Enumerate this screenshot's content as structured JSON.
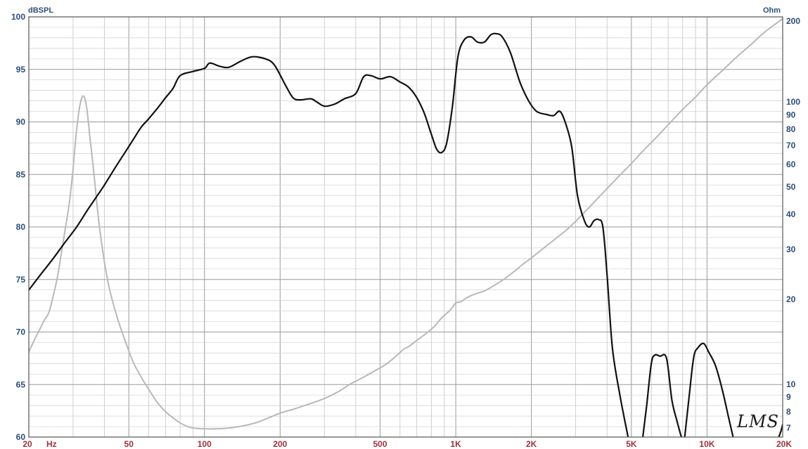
{
  "chart_data": {
    "type": "line",
    "title": "",
    "left_axis": {
      "unit": "dBSPL",
      "ylim": [
        60,
        100
      ],
      "ticks": [
        60,
        65,
        70,
        75,
        80,
        85,
        90,
        95,
        100
      ]
    },
    "right_axis": {
      "unit": "Ohm",
      "scale": "log",
      "ylim": [
        6.5,
        200
      ],
      "ticks": [
        {
          "value": 7,
          "label": "7"
        },
        {
          "value": 8,
          "label": "8"
        },
        {
          "value": 9,
          "label": "9"
        },
        {
          "value": 10,
          "label": "10"
        },
        {
          "value": 20,
          "label": "20"
        },
        {
          "value": 30,
          "label": "30"
        },
        {
          "value": 40,
          "label": "40"
        },
        {
          "value": 50,
          "label": "50"
        },
        {
          "value": 60,
          "label": "60"
        },
        {
          "value": 70,
          "label": "70"
        },
        {
          "value": 80,
          "label": "80"
        },
        {
          "value": 90,
          "label": "90"
        },
        {
          "value": 100,
          "label": "100"
        },
        {
          "value": 200,
          "label": "200"
        }
      ]
    },
    "x_axis": {
      "unit": "Hz",
      "scale": "log",
      "xlim": [
        20,
        20000
      ],
      "ticks": [
        {
          "value": 20,
          "label": "20"
        },
        {
          "value": 50,
          "label": "50"
        },
        {
          "value": 100,
          "label": "100"
        },
        {
          "value": 200,
          "label": "200"
        },
        {
          "value": 500,
          "label": "500"
        },
        {
          "value": 1000,
          "label": "1K"
        },
        {
          "value": 2000,
          "label": "2K"
        },
        {
          "value": 5000,
          "label": "5K"
        },
        {
          "value": 10000,
          "label": "10K"
        },
        {
          "value": 20000,
          "label": "20K"
        }
      ]
    },
    "grid": true,
    "watermark": "LMS",
    "series": [
      {
        "axis": "left",
        "color": "#111111",
        "points": [
          [
            20,
            74.0
          ],
          [
            22,
            75.3
          ],
          [
            25,
            77.0
          ],
          [
            28,
            78.6
          ],
          [
            31,
            80.0
          ],
          [
            34,
            81.5
          ],
          [
            37,
            82.8
          ],
          [
            40,
            84.0
          ],
          [
            44,
            85.6
          ],
          [
            48,
            87.0
          ],
          [
            52,
            88.3
          ],
          [
            56,
            89.5
          ],
          [
            60,
            90.3
          ],
          [
            65,
            91.3
          ],
          [
            70,
            92.3
          ],
          [
            75,
            93.2
          ],
          [
            80,
            94.4
          ],
          [
            90,
            94.8
          ],
          [
            100,
            95.1
          ],
          [
            105,
            95.6
          ],
          [
            115,
            95.3
          ],
          [
            125,
            95.2
          ],
          [
            140,
            95.8
          ],
          [
            155,
            96.2
          ],
          [
            175,
            96.0
          ],
          [
            190,
            95.4
          ],
          [
            210,
            93.5
          ],
          [
            225,
            92.3
          ],
          [
            240,
            92.1
          ],
          [
            265,
            92.2
          ],
          [
            280,
            91.9
          ],
          [
            300,
            91.5
          ],
          [
            330,
            91.7
          ],
          [
            360,
            92.2
          ],
          [
            400,
            92.7
          ],
          [
            430,
            94.3
          ],
          [
            460,
            94.4
          ],
          [
            500,
            94.1
          ],
          [
            550,
            94.3
          ],
          [
            600,
            93.8
          ],
          [
            650,
            93.3
          ],
          [
            700,
            92.3
          ],
          [
            750,
            90.8
          ],
          [
            800,
            88.8
          ],
          [
            840,
            87.4
          ],
          [
            880,
            87.1
          ],
          [
            920,
            88.0
          ],
          [
            970,
            91.5
          ],
          [
            1020,
            96.2
          ],
          [
            1080,
            97.8
          ],
          [
            1150,
            98.1
          ],
          [
            1220,
            97.6
          ],
          [
            1300,
            97.6
          ],
          [
            1380,
            98.3
          ],
          [
            1450,
            98.4
          ],
          [
            1530,
            98.1
          ],
          [
            1650,
            96.6
          ],
          [
            1800,
            93.8
          ],
          [
            1950,
            92.0
          ],
          [
            2100,
            91.0
          ],
          [
            2300,
            90.7
          ],
          [
            2450,
            90.6
          ],
          [
            2600,
            91.0
          ],
          [
            2750,
            89.7
          ],
          [
            2900,
            87.5
          ],
          [
            3050,
            83.0
          ],
          [
            3250,
            80.6
          ],
          [
            3400,
            80.0
          ],
          [
            3550,
            80.6
          ],
          [
            3700,
            80.7
          ],
          [
            3850,
            80.0
          ],
          [
            4000,
            75.5
          ],
          [
            4200,
            68.5
          ],
          [
            4500,
            64.0
          ],
          [
            4850,
            60.0
          ]
        ]
      },
      {
        "axis": "left",
        "color": "#111111",
        "points": [
          [
            5550,
            60.0
          ],
          [
            5750,
            63.0
          ],
          [
            6000,
            67.0
          ],
          [
            6200,
            67.8
          ],
          [
            6500,
            67.7
          ],
          [
            6900,
            67.5
          ],
          [
            7250,
            63.5
          ],
          [
            7600,
            61.5
          ],
          [
            7900,
            60.0
          ]
        ]
      },
      {
        "axis": "left",
        "color": "#111111",
        "points": [
          [
            8150,
            60.0
          ],
          [
            8500,
            64.0
          ],
          [
            8850,
            67.6
          ],
          [
            9200,
            68.5
          ],
          [
            9700,
            68.9
          ],
          [
            10200,
            68.0
          ],
          [
            10800,
            66.8
          ],
          [
            11500,
            64.5
          ],
          [
            12200,
            61.8
          ],
          [
            12700,
            60.0
          ]
        ]
      },
      {
        "axis": "left",
        "color": "#111111",
        "points": [
          [
            19300,
            60.0
          ],
          [
            19700,
            60.6
          ],
          [
            20000,
            61.2
          ]
        ]
      },
      {
        "axis": "right",
        "color": "#b8b8b8",
        "points": [
          [
            20,
            13.0
          ],
          [
            21,
            14.3
          ],
          [
            22,
            15.5
          ],
          [
            23,
            16.8
          ],
          [
            24,
            17.9
          ],
          [
            25,
            20.5
          ],
          [
            26,
            24.0
          ],
          [
            27,
            29.5
          ],
          [
            28,
            36.0
          ],
          [
            29,
            44.0
          ],
          [
            30,
            58.0
          ],
          [
            31,
            80.0
          ],
          [
            32,
            98.0
          ],
          [
            33,
            105.0
          ],
          [
            34,
            95.0
          ],
          [
            35,
            75.0
          ],
          [
            36,
            60.0
          ],
          [
            37,
            47.0
          ],
          [
            38,
            37.5
          ],
          [
            39,
            31.5
          ],
          [
            40,
            27.0
          ],
          [
            42,
            21.5
          ],
          [
            45,
            17.2
          ],
          [
            48,
            14.5
          ],
          [
            52,
            12.0
          ],
          [
            56,
            10.6
          ],
          [
            60,
            9.6
          ],
          [
            65,
            8.6
          ],
          [
            70,
            8.0
          ],
          [
            75,
            7.6
          ],
          [
            80,
            7.3
          ],
          [
            85,
            7.1
          ],
          [
            90,
            7.0
          ],
          [
            100,
            6.95
          ],
          [
            110,
            6.95
          ],
          [
            125,
            7.0
          ],
          [
            140,
            7.1
          ],
          [
            160,
            7.3
          ],
          [
            180,
            7.6
          ],
          [
            200,
            7.9
          ],
          [
            230,
            8.2
          ],
          [
            260,
            8.5
          ],
          [
            300,
            8.9
          ],
          [
            340,
            9.4
          ],
          [
            380,
            10.0
          ],
          [
            430,
            10.6
          ],
          [
            480,
            11.2
          ],
          [
            530,
            11.8
          ],
          [
            580,
            12.6
          ],
          [
            620,
            13.3
          ],
          [
            650,
            13.6
          ],
          [
            700,
            14.3
          ],
          [
            760,
            15.1
          ],
          [
            820,
            16.0
          ],
          [
            880,
            17.2
          ],
          [
            950,
            18.3
          ],
          [
            1000,
            19.4
          ],
          [
            1050,
            19.6
          ],
          [
            1100,
            20.2
          ],
          [
            1200,
            20.9
          ],
          [
            1300,
            21.4
          ],
          [
            1400,
            22.2
          ],
          [
            1550,
            23.5
          ],
          [
            1700,
            25.0
          ],
          [
            1850,
            26.6
          ],
          [
            2000,
            28.0
          ],
          [
            2200,
            30.0
          ],
          [
            2500,
            32.8
          ],
          [
            2800,
            35.6
          ],
          [
            3100,
            38.9
          ],
          [
            3500,
            43.5
          ],
          [
            4000,
            49.3
          ],
          [
            4500,
            55.0
          ],
          [
            5000,
            60.5
          ],
          [
            5600,
            67.5
          ],
          [
            6300,
            75.0
          ],
          [
            7000,
            83.0
          ],
          [
            8000,
            94.0
          ],
          [
            9000,
            104.0
          ],
          [
            10000,
            115.0
          ],
          [
            11500,
            129.0
          ],
          [
            13000,
            143.0
          ],
          [
            15000,
            160.0
          ],
          [
            17000,
            177.0
          ],
          [
            20000,
            197.0
          ]
        ]
      }
    ]
  }
}
